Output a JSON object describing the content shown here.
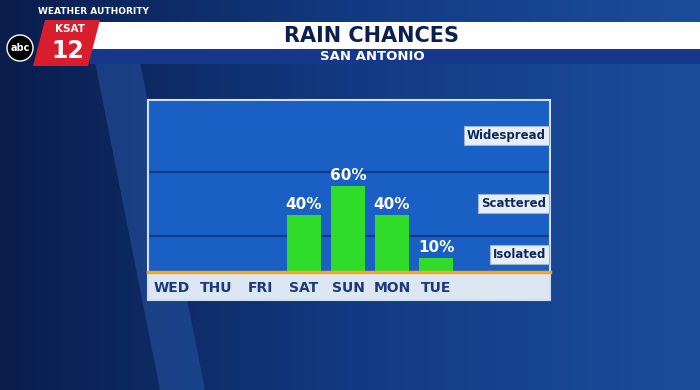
{
  "chart_data": {
    "type": "bar",
    "title": "RAIN CHANCES",
    "subtitle": "SAN ANTONIO",
    "categories": [
      "WED",
      "THU",
      "FRI",
      "SAT",
      "SUN",
      "MON",
      "TUE"
    ],
    "values": [
      0,
      0,
      0,
      40,
      60,
      40,
      10
    ],
    "value_labels": [
      null,
      null,
      null,
      "40%",
      "60%",
      "40%",
      "10%"
    ],
    "data_labels": true,
    "color": "#2fdc2a",
    "ylim": [
      0,
      120
    ],
    "yticks": [],
    "tick_labels": "x",
    "bands": [
      {
        "label": "Isolated",
        "low": 0,
        "high": 25
      },
      {
        "label": "Scattered",
        "low": 25,
        "high": 70
      },
      {
        "label": "Widespread",
        "low": 70,
        "high": 120
      }
    ]
  },
  "branding": {
    "header": "WEATHER AUTHORITY",
    "station": "KSAT",
    "channel": "12",
    "network": "abc"
  }
}
